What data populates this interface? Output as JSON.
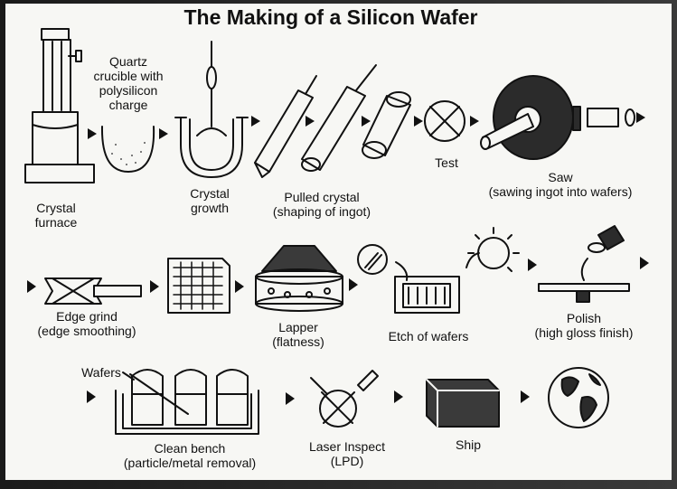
{
  "title": "The Making of a Silicon Wafer",
  "steps": {
    "crystal_furnace": [
      "Crystal",
      "furnace"
    ],
    "quartz_crucible": [
      "Quartz",
      "crucible with",
      "polysilicon",
      "charge"
    ],
    "crystal_growth": [
      "Crystal",
      "growth"
    ],
    "pulled_crystal": [
      "Pulled crystal",
      "(shaping of ingot)"
    ],
    "test": [
      "Test"
    ],
    "saw": [
      "Saw",
      "(sawing ingot into wafers)"
    ],
    "edge_grind": [
      "Edge grind",
      "(edge smoothing)"
    ],
    "lapper": [
      "Lapper",
      "(flatness)"
    ],
    "etch": [
      "Etch of wafers"
    ],
    "polish": [
      "Polish",
      "(high gloss finish)"
    ],
    "wafers": [
      "Wafers"
    ],
    "clean_bench": [
      "Clean bench",
      "(particle/metal removal)"
    ],
    "laser_inspect": [
      "Laser Inspect",
      "(LPD)"
    ],
    "ship": [
      "Ship"
    ]
  },
  "colors": {
    "ink": "#111111",
    "paper": "#f7f7f4",
    "frame": "#2a2a2a"
  }
}
